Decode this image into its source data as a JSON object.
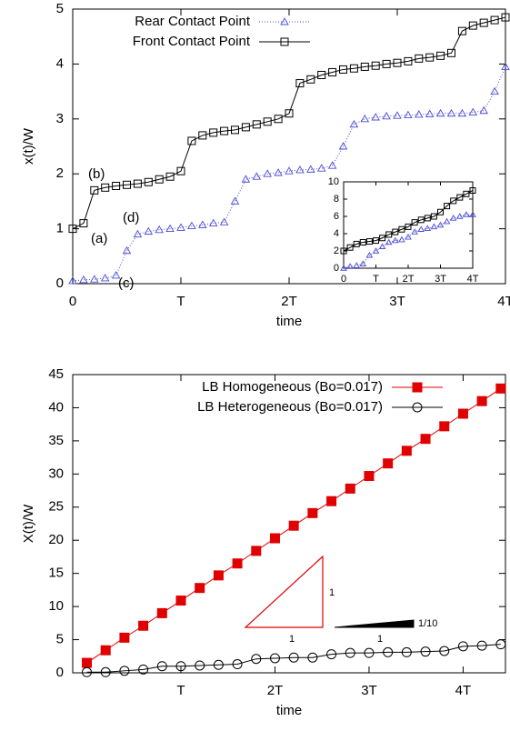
{
  "chart_data": [
    {
      "type": "line",
      "xlabel": "time",
      "ylabel": "x(t)/W",
      "xlim": [
        0,
        4
      ],
      "ylim": [
        0,
        5
      ],
      "xticks": [
        0,
        {
          "value": 1,
          "label": "T"
        },
        {
          "value": 2,
          "label": "2T"
        },
        {
          "value": 3,
          "label": "3T"
        },
        {
          "value": 4,
          "label": "4T"
        }
      ],
      "yticks": [
        0,
        1,
        2,
        3,
        4,
        5
      ],
      "legend": "top-left",
      "x": [
        0,
        0.1,
        0.2,
        0.3,
        0.4,
        0.5,
        0.6,
        0.7,
        0.8,
        0.9,
        1.0,
        1.1,
        1.2,
        1.3,
        1.4,
        1.5,
        1.6,
        1.7,
        1.8,
        1.9,
        2.0,
        2.1,
        2.2,
        2.3,
        2.4,
        2.5,
        2.6,
        2.7,
        2.8,
        2.9,
        3.0,
        3.1,
        3.2,
        3.3,
        3.4,
        3.5,
        3.6,
        3.7,
        3.8,
        3.9,
        4.0
      ],
      "series": [
        {
          "name": "Rear Contact Point",
          "color": "#4b4bd6",
          "marker": "triangle",
          "line_style": "dotted",
          "values": [
            0.05,
            0.07,
            0.08,
            0.1,
            0.15,
            0.6,
            0.9,
            0.95,
            0.98,
            1.0,
            1.02,
            1.05,
            1.07,
            1.1,
            1.12,
            1.5,
            1.9,
            1.95,
            2.0,
            2.02,
            2.05,
            2.07,
            2.08,
            2.1,
            2.15,
            2.5,
            2.9,
            3.0,
            3.03,
            3.05,
            3.06,
            3.07,
            3.08,
            3.09,
            3.1,
            3.1,
            3.1,
            3.12,
            3.15,
            3.5,
            3.95
          ]
        },
        {
          "name": "Front Contact Point",
          "color": "#000000",
          "marker": "square",
          "line_style": "solid",
          "values": [
            1.0,
            1.1,
            1.7,
            1.75,
            1.78,
            1.8,
            1.82,
            1.85,
            1.9,
            1.95,
            2.05,
            2.6,
            2.7,
            2.75,
            2.78,
            2.8,
            2.85,
            2.9,
            2.95,
            3.0,
            3.1,
            3.65,
            3.72,
            3.8,
            3.85,
            3.9,
            3.92,
            3.95,
            3.97,
            4.0,
            4.02,
            4.05,
            4.1,
            4.12,
            4.15,
            4.2,
            4.6,
            4.7,
            4.75,
            4.8,
            4.85
          ]
        }
      ],
      "annotations": [
        "(a)",
        "(b)",
        "(c)",
        "(d)"
      ],
      "inset": {
        "type": "line",
        "xlim": [
          0,
          4
        ],
        "ylim": [
          0,
          10
        ],
        "xticks": [
          0,
          {
            "value": 1,
            "label": "T"
          },
          {
            "value": 2,
            "label": "2T"
          },
          {
            "value": 3,
            "label": "3T"
          },
          {
            "value": 4,
            "label": "4T"
          }
        ],
        "yticks": [
          0,
          2,
          4,
          6,
          8,
          10
        ],
        "x": [
          0,
          0.2,
          0.4,
          0.6,
          0.8,
          1.0,
          1.2,
          1.4,
          1.6,
          1.8,
          2.0,
          2.2,
          2.4,
          2.6,
          2.8,
          3.0,
          3.2,
          3.4,
          3.6,
          3.8,
          4.0
        ],
        "series": [
          {
            "color": "#4b4bd6",
            "marker": "triangle",
            "line_style": "dotted",
            "values": [
              0,
              0.2,
              0.3,
              0.5,
              1.5,
              2.0,
              2.5,
              3.0,
              3.2,
              3.3,
              3.6,
              4.2,
              4.5,
              4.6,
              4.8,
              5.0,
              5.4,
              5.8,
              6.0,
              6.2,
              6.2
            ]
          },
          {
            "color": "#000000",
            "marker": "square",
            "line_style": "solid",
            "values": [
              2.0,
              2.4,
              2.8,
              3.0,
              3.1,
              3.2,
              3.5,
              3.9,
              4.2,
              4.5,
              4.8,
              5.3,
              5.6,
              5.8,
              6.0,
              6.5,
              7.2,
              7.8,
              8.2,
              8.6,
              9.0
            ]
          }
        ]
      }
    },
    {
      "type": "line",
      "xlabel": "time",
      "ylabel": "X(t)/W",
      "xlim": [
        -0.15,
        4.45
      ],
      "ylim": [
        0,
        45
      ],
      "xticks": [
        {
          "value": 1,
          "label": "T"
        },
        {
          "value": 2,
          "label": "2T"
        },
        {
          "value": 3,
          "label": "3T"
        },
        {
          "value": 4,
          "label": "4T"
        }
      ],
      "yticks": [
        0,
        5,
        10,
        15,
        20,
        25,
        30,
        35,
        40,
        45
      ],
      "legend": "top-right",
      "x": [
        0,
        0.2,
        0.4,
        0.6,
        0.8,
        1.0,
        1.2,
        1.4,
        1.6,
        1.8,
        2.0,
        2.2,
        2.4,
        2.6,
        2.8,
        3.0,
        3.2,
        3.4,
        3.6,
        3.8,
        4.0,
        4.2,
        4.4
      ],
      "series": [
        {
          "name": "LB Homogeneous (Bo=0.017)",
          "color": "#e00000",
          "marker": "filled-square",
          "line_style": "solid",
          "values": [
            1.5,
            3.4,
            5.3,
            7.1,
            9.0,
            10.9,
            12.8,
            14.7,
            16.5,
            18.4,
            20.3,
            22.2,
            24.1,
            25.9,
            27.8,
            29.7,
            31.6,
            33.5,
            35.3,
            37.2,
            39.1,
            41.0,
            42.9
          ]
        },
        {
          "name": "LB Heterogeneous (Bo=0.017)",
          "color": "#000000",
          "marker": "circle",
          "line_style": "solid",
          "values": [
            0.1,
            0.1,
            0.3,
            0.5,
            1.0,
            1.0,
            1.1,
            1.2,
            1.3,
            2.1,
            2.2,
            2.3,
            2.3,
            2.8,
            3.0,
            3.0,
            3.1,
            3.1,
            3.2,
            3.3,
            4.0,
            4.1,
            4.3
          ]
        }
      ],
      "annotations": [
        "1",
        "1",
        "1",
        "1/10"
      ]
    }
  ]
}
